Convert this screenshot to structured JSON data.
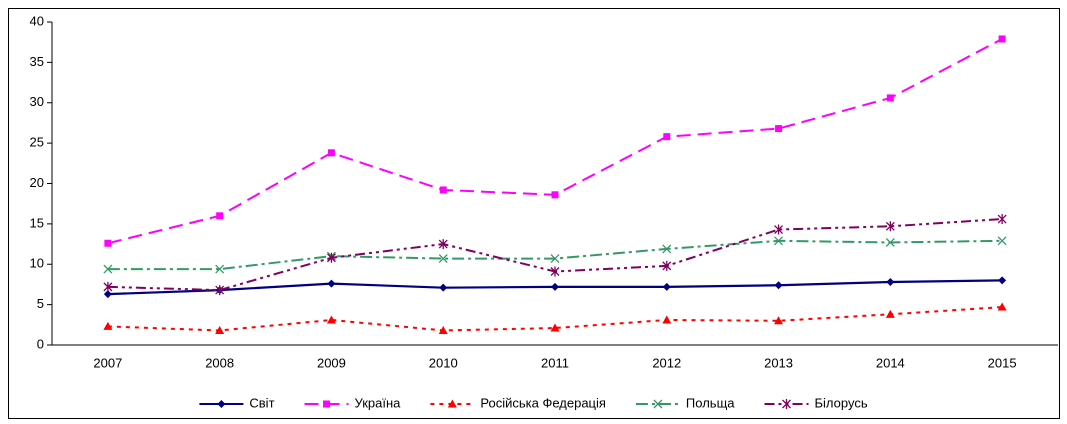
{
  "chart_data": {
    "type": "line",
    "categories": [
      "2007",
      "2008",
      "2009",
      "2010",
      "2011",
      "2012",
      "2013",
      "2014",
      "2015"
    ],
    "series": [
      {
        "name": "Світ",
        "color": "#000080",
        "marker": "diamond",
        "dash": "solid",
        "values": [
          6.3,
          6.8,
          7.6,
          7.1,
          7.2,
          7.2,
          7.4,
          7.8,
          8.0
        ]
      },
      {
        "name": "Україна",
        "color": "#ff00ff",
        "marker": "square",
        "dash": "dashed",
        "values": [
          12.6,
          16.0,
          23.8,
          19.2,
          18.6,
          25.8,
          26.8,
          30.6,
          37.9
        ]
      },
      {
        "name": "Російська Федерація",
        "color": "#ff0000",
        "marker": "triangle",
        "dash": "dotted",
        "values": [
          2.3,
          1.8,
          3.1,
          1.8,
          2.1,
          3.1,
          3.0,
          3.8,
          4.7
        ]
      },
      {
        "name": "Польща",
        "color": "#339966",
        "marker": "x",
        "dash": "dashdot",
        "values": [
          9.4,
          9.4,
          11.0,
          10.7,
          10.7,
          11.9,
          12.9,
          12.7,
          12.9
        ]
      },
      {
        "name": "Білорусь",
        "color": "#800060",
        "marker": "asterisk",
        "dash": "dashdotdot",
        "values": [
          7.2,
          6.8,
          10.8,
          12.5,
          9.1,
          9.8,
          14.3,
          14.7,
          15.6
        ]
      }
    ],
    "ylim": [
      0,
      40
    ],
    "yticks": [
      0,
      5,
      10,
      15,
      20,
      25,
      30,
      35,
      40
    ],
    "grid": false,
    "legend": "bottom"
  }
}
